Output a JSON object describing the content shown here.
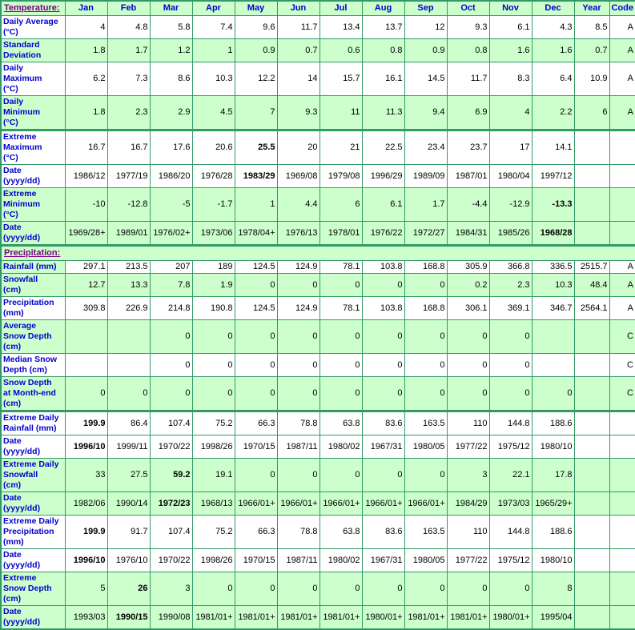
{
  "colors": {
    "border_green": "#339966",
    "cell_green": "#CCFFCC",
    "cell_white": "#FFFFFF",
    "label_blue": "#0000CC",
    "section_purple": "#800080",
    "value_black": "#000000"
  },
  "table": {
    "top_section_label": "Temperature:",
    "month_headers": [
      "Jan",
      "Feb",
      "Mar",
      "Apr",
      "May",
      "Jun",
      "Jul",
      "Aug",
      "Sep",
      "Oct",
      "Nov",
      "Dec",
      "Year",
      "Code"
    ],
    "rows": [
      {
        "kind": "data",
        "label": "Daily Average\n(°C)",
        "bg": "white",
        "values": [
          "4",
          "4.8",
          "5.8",
          "7.4",
          "9.6",
          "11.7",
          "13.4",
          "13.7",
          "12",
          "9.3",
          "6.1",
          "4.3",
          "8.5",
          "A"
        ],
        "bold": []
      },
      {
        "kind": "data",
        "label": "Standard\nDeviation",
        "bg": "green",
        "values": [
          "1.8",
          "1.7",
          "1.2",
          "1",
          "0.9",
          "0.7",
          "0.6",
          "0.8",
          "0.9",
          "0.8",
          "1.6",
          "1.6",
          "0.7",
          "A"
        ],
        "bold": []
      },
      {
        "kind": "data",
        "label": "Daily\nMaximum\n(°C)",
        "bg": "white",
        "values": [
          "6.2",
          "7.3",
          "8.6",
          "10.3",
          "12.2",
          "14",
          "15.7",
          "16.1",
          "14.5",
          "11.7",
          "8.3",
          "6.4",
          "10.9",
          "A"
        ],
        "bold": []
      },
      {
        "kind": "data",
        "label": "Daily\nMinimum\n(°C)",
        "bg": "green",
        "values": [
          "1.8",
          "2.3",
          "2.9",
          "4.5",
          "7",
          "9.3",
          "11",
          "11.3",
          "9.4",
          "6.9",
          "4",
          "2.2",
          "6",
          "A"
        ],
        "bold": []
      },
      {
        "kind": "data",
        "label": "Extreme\nMaximum\n(°C)",
        "bg": "white",
        "group_start": true,
        "values": [
          "16.7",
          "16.7",
          "17.6",
          "20.6",
          "25.5",
          "20",
          "21",
          "22.5",
          "23.4",
          "23.7",
          "17",
          "14.1",
          "",
          ""
        ],
        "bold": [
          4
        ]
      },
      {
        "kind": "data",
        "label": "Date\n(yyyy/dd)",
        "bg": "white",
        "values": [
          "1986/12",
          "1977/19",
          "1986/20",
          "1976/28",
          "1983/29",
          "1969/08",
          "1979/08",
          "1996/29",
          "1989/09",
          "1987/01",
          "1980/04",
          "1997/12",
          "",
          ""
        ],
        "bold": [
          4
        ]
      },
      {
        "kind": "data",
        "label": "Extreme\nMinimum\n(°C)",
        "bg": "green",
        "values": [
          "-10",
          "-12.8",
          "-5",
          "-1.7",
          "1",
          "4.4",
          "6",
          "6.1",
          "1.7",
          "-4.4",
          "-12.9",
          "-13.3",
          "",
          ""
        ],
        "bold": [
          11
        ]
      },
      {
        "kind": "data",
        "label": "Date\n(yyyy/dd)",
        "bg": "green",
        "values": [
          "1969/28+",
          "1989/01",
          "1976/02+",
          "1973/06",
          "1978/04+",
          "1976/13",
          "1978/01",
          "1976/22",
          "1972/27",
          "1984/31",
          "1985/26",
          "1968/28",
          "",
          ""
        ],
        "bold": [
          11
        ]
      },
      {
        "kind": "section",
        "label": "Precipitation:",
        "group_start": true
      },
      {
        "kind": "data",
        "label": "Rainfall (mm)",
        "bg": "white",
        "label_bg": "green",
        "values": [
          "297.1",
          "213.5",
          "207",
          "189",
          "124.5",
          "124.9",
          "78.1",
          "103.8",
          "168.8",
          "305.9",
          "366.8",
          "336.5",
          "2515.7",
          "A"
        ],
        "bold": []
      },
      {
        "kind": "data",
        "label": "Snowfall\n(cm)",
        "bg": "green",
        "values": [
          "12.7",
          "13.3",
          "7.8",
          "1.9",
          "0",
          "0",
          "0",
          "0",
          "0",
          "0.2",
          "2.3",
          "10.3",
          "48.4",
          "A"
        ],
        "bold": []
      },
      {
        "kind": "data",
        "label": "Precipitation\n(mm)",
        "bg": "white",
        "values": [
          "309.8",
          "226.9",
          "214.8",
          "190.8",
          "124.5",
          "124.9",
          "78.1",
          "103.8",
          "168.8",
          "306.1",
          "369.1",
          "346.7",
          "2564.1",
          "A"
        ],
        "bold": []
      },
      {
        "kind": "data",
        "label": "Average\nSnow Depth\n(cm)",
        "bg": "green",
        "values": [
          "",
          "",
          "0",
          "0",
          "0",
          "0",
          "0",
          "0",
          "0",
          "0",
          "0",
          "",
          "",
          "C"
        ],
        "bold": []
      },
      {
        "kind": "data",
        "label": "Median Snow\nDepth (cm)",
        "bg": "white",
        "values": [
          "",
          "",
          "0",
          "0",
          "0",
          "0",
          "0",
          "0",
          "0",
          "0",
          "0",
          "",
          "",
          "C"
        ],
        "bold": []
      },
      {
        "kind": "data",
        "label": "Snow Depth\nat Month-end\n(cm)",
        "bg": "green",
        "values": [
          "0",
          "0",
          "0",
          "0",
          "0",
          "0",
          "0",
          "0",
          "0",
          "0",
          "0",
          "0",
          "",
          "C"
        ],
        "bold": []
      },
      {
        "kind": "data",
        "label": "Extreme Daily\nRainfall (mm)",
        "bg": "white",
        "group_start": true,
        "values": [
          "199.9",
          "86.4",
          "107.4",
          "75.2",
          "66.3",
          "78.8",
          "63.8",
          "83.6",
          "163.5",
          "110",
          "144.8",
          "188.6",
          "",
          ""
        ],
        "bold": [
          0
        ]
      },
      {
        "kind": "data",
        "label": "Date\n(yyyy/dd)",
        "bg": "white",
        "values": [
          "1996/10",
          "1999/11",
          "1970/22",
          "1998/26",
          "1970/15",
          "1987/11",
          "1980/02",
          "1967/31",
          "1980/05",
          "1977/22",
          "1975/12",
          "1980/10",
          "",
          ""
        ],
        "bold": [
          0
        ]
      },
      {
        "kind": "data",
        "label": "Extreme Daily\nSnowfall\n(cm)",
        "bg": "green",
        "values": [
          "33",
          "27.5",
          "59.2",
          "19.1",
          "0",
          "0",
          "0",
          "0",
          "0",
          "3",
          "22.1",
          "17.8",
          "",
          ""
        ],
        "bold": [
          2
        ]
      },
      {
        "kind": "data",
        "label": "Date\n(yyyy/dd)",
        "bg": "green",
        "values": [
          "1982/06",
          "1990/14",
          "1972/23",
          "1968/13",
          "1966/01+",
          "1966/01+",
          "1966/01+",
          "1966/01+",
          "1966/01+",
          "1984/29",
          "1973/03",
          "1965/29+",
          "",
          ""
        ],
        "bold": [
          2
        ]
      },
      {
        "kind": "data",
        "label": "Extreme Daily\nPrecipitation\n(mm)",
        "bg": "white",
        "values": [
          "199.9",
          "91.7",
          "107.4",
          "75.2",
          "66.3",
          "78.8",
          "63.8",
          "83.6",
          "163.5",
          "110",
          "144.8",
          "188.6",
          "",
          ""
        ],
        "bold": [
          0
        ]
      },
      {
        "kind": "data",
        "label": "Date\n(yyyy/dd)",
        "bg": "white",
        "values": [
          "1996/10",
          "1976/10",
          "1970/22",
          "1998/26",
          "1970/15",
          "1987/11",
          "1980/02",
          "1967/31",
          "1980/05",
          "1977/22",
          "1975/12",
          "1980/10",
          "",
          ""
        ],
        "bold": [
          0
        ]
      },
      {
        "kind": "data",
        "label": "Extreme\nSnow Depth\n(cm)",
        "bg": "green",
        "values": [
          "5",
          "26",
          "3",
          "0",
          "0",
          "0",
          "0",
          "0",
          "0",
          "0",
          "0",
          "8",
          "",
          ""
        ],
        "bold": [
          1
        ]
      },
      {
        "kind": "data",
        "label": "Date\n(yyyy/dd)",
        "bg": "green",
        "values": [
          "1993/03",
          "1990/15",
          "1990/08",
          "1981/01+",
          "1981/01+",
          "1981/01+",
          "1981/01+",
          "1980/01+",
          "1981/01+",
          "1981/01+",
          "1980/01+",
          "1995/04",
          "",
          ""
        ],
        "bold": [
          1
        ]
      }
    ]
  }
}
